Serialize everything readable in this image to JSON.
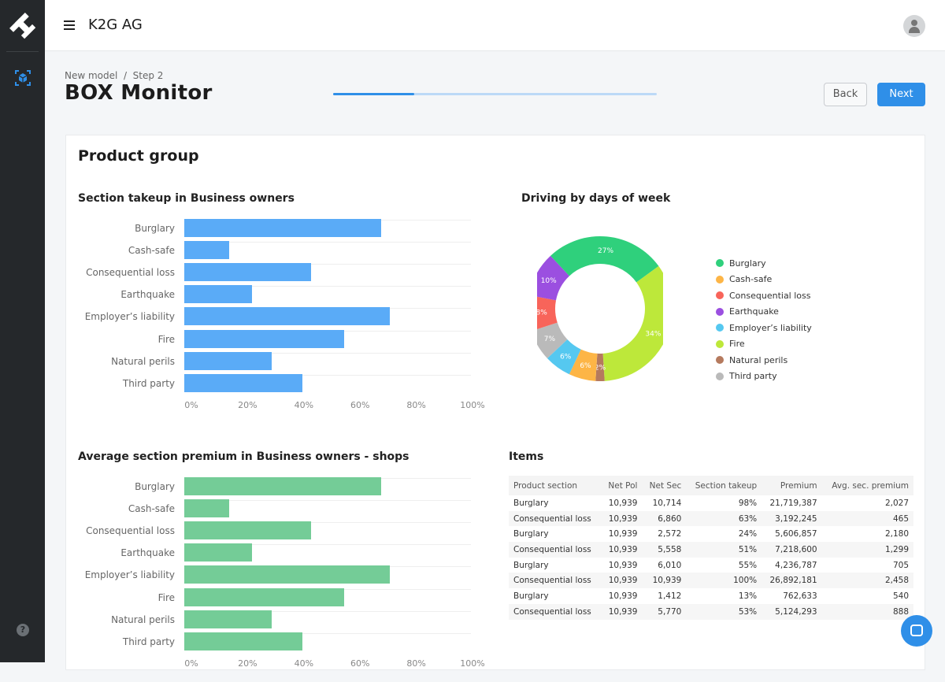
{
  "app": {
    "company": "K2G AG"
  },
  "page": {
    "breadcrumb": "New model  /  Step 2",
    "title": "BOX Monitor",
    "progress": 0.25,
    "back": "Back",
    "next": "Next"
  },
  "card": {
    "title": "Product group"
  },
  "colors": {
    "accent": "#2f8fe8",
    "bar1": "#5aabf7",
    "bar2": "#74cc97"
  },
  "chart_data": [
    {
      "type": "bar",
      "orientation": "horizontal",
      "title": "Section takeup in Business owners",
      "categories": [
        "Burglary",
        "Cash-safe",
        "Consequential loss",
        "Earthquake",
        "Employer’s liability",
        "Fire",
        "Natural perils",
        "Third party"
      ],
      "values": [
        70,
        16,
        45,
        24,
        73,
        57,
        31,
        42
      ],
      "xlim": [
        0,
        100
      ],
      "xticks": [
        "0%",
        "20%",
        "40%",
        "60%",
        "80%",
        "100%"
      ],
      "color": "#5aabf7"
    },
    {
      "type": "pie",
      "title": "Driving by days of week",
      "donut": true,
      "series": [
        {
          "name": "Burglary",
          "value": 27,
          "label": "27%",
          "color": "#2fd07c"
        },
        {
          "name": "Fire",
          "value": 34,
          "label": "34%",
          "color": "#bde83a"
        },
        {
          "name": "Natural perils",
          "value": 2,
          "label": "2%",
          "color": "#b57a5e"
        },
        {
          "name": "Cash-safe",
          "value": 6,
          "label": "6%",
          "color": "#fdb546"
        },
        {
          "name": "Employer’s liability",
          "value": 6,
          "label": "6%",
          "color": "#55c8f0"
        },
        {
          "name": "Third party",
          "value": 7,
          "label": "7%",
          "color": "#bababa"
        },
        {
          "name": "Consequential loss",
          "value": 8,
          "label": "8%",
          "color": "#f8645a"
        },
        {
          "name": "Earthquake",
          "value": 10,
          "label": "10%",
          "color": "#9b4fe0"
        }
      ],
      "legend": [
        "Burglary",
        "Cash-safe",
        "Consequential loss",
        "Earthquake",
        "Employer’s liability",
        "Fire",
        "Natural perils",
        "Third party"
      ],
      "legend_placement": "right"
    },
    {
      "type": "bar",
      "orientation": "horizontal",
      "title": "Average section premium in Business owners - shops",
      "categories": [
        "Burglary",
        "Cash-safe",
        "Consequential loss",
        "Earthquake",
        "Employer’s liability",
        "Fire",
        "Natural perils",
        "Third party"
      ],
      "values": [
        70,
        16,
        45,
        24,
        73,
        57,
        31,
        42
      ],
      "xlim": [
        0,
        100
      ],
      "xticks": [
        "0%",
        "20%",
        "40%",
        "60%",
        "80%",
        "100%"
      ],
      "color": "#74cc97"
    }
  ],
  "items": {
    "title": "Items",
    "columns": [
      "Product section",
      "Net Pol",
      "Net Sec",
      "Section takeup",
      "Premium",
      "Avg. sec. premium"
    ],
    "rows": [
      [
        "Burglary",
        "10,939",
        "10,714",
        "98%",
        "21,719,387",
        "2,027"
      ],
      [
        "Consequential loss",
        "10,939",
        "6,860",
        "63%",
        "3,192,245",
        "465"
      ],
      [
        "Burglary",
        "10,939",
        "2,572",
        "24%",
        "5,606,857",
        "2,180"
      ],
      [
        "Consequential loss",
        "10,939",
        "5,558",
        "51%",
        "7,218,600",
        "1,299"
      ],
      [
        "Burglary",
        "10,939",
        "6,010",
        "55%",
        "4,236,787",
        "705"
      ],
      [
        "Consequential loss",
        "10,939",
        "10,939",
        "100%",
        "26,892,181",
        "2,458"
      ],
      [
        "Burglary",
        "10,939",
        "1,412",
        "13%",
        "762,633",
        "540"
      ],
      [
        "Consequential loss",
        "10,939",
        "5,770",
        "53%",
        "5,124,293",
        "888"
      ]
    ]
  }
}
